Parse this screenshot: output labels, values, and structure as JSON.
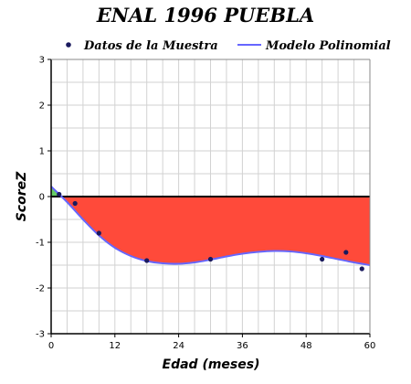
{
  "chart_data": {
    "type": "line",
    "title": "ENAL 1996 PUEBLA",
    "xlabel": "Edad (meses)",
    "ylabel": "ScoreZ",
    "xlim": [
      0,
      60
    ],
    "ylim": [
      -3,
      3
    ],
    "x_ticks": [
      "0",
      "12",
      "24",
      "36",
      "48",
      "60"
    ],
    "y_ticks": [
      "3",
      "2",
      "1",
      "0",
      "-1",
      "-2",
      "-3"
    ],
    "grid": true,
    "legend": "top",
    "legend_entries": [
      "Datos de la Muestra",
      "Modelo Polinomial"
    ],
    "series": [
      {
        "name": "Datos de la Muestra",
        "kind": "scatter",
        "color": "#1a1a5e",
        "x": [
          1.5,
          4.5,
          9,
          18,
          30,
          51,
          55.5,
          58.5
        ],
        "y": [
          0.05,
          -0.15,
          -0.8,
          -1.4,
          -1.37,
          -1.37,
          -1.22,
          -1.58
        ]
      },
      {
        "name": "Modelo Polinomial",
        "kind": "line",
        "color": "#6666ff",
        "x": [
          0,
          3,
          6,
          9,
          12,
          15,
          18,
          21,
          24,
          27,
          30,
          33,
          36,
          39,
          42,
          45,
          48,
          51,
          54,
          57,
          60
        ],
        "y": [
          0.22,
          -0.12,
          -0.5,
          -0.85,
          -1.12,
          -1.3,
          -1.41,
          -1.46,
          -1.47,
          -1.44,
          -1.38,
          -1.31,
          -1.25,
          -1.21,
          -1.19,
          -1.2,
          -1.24,
          -1.3,
          -1.37,
          -1.44,
          -1.5
        ]
      }
    ],
    "fill": {
      "below_zero_color": "#ff4a3a",
      "above_zero_color": "#66cc66"
    }
  }
}
